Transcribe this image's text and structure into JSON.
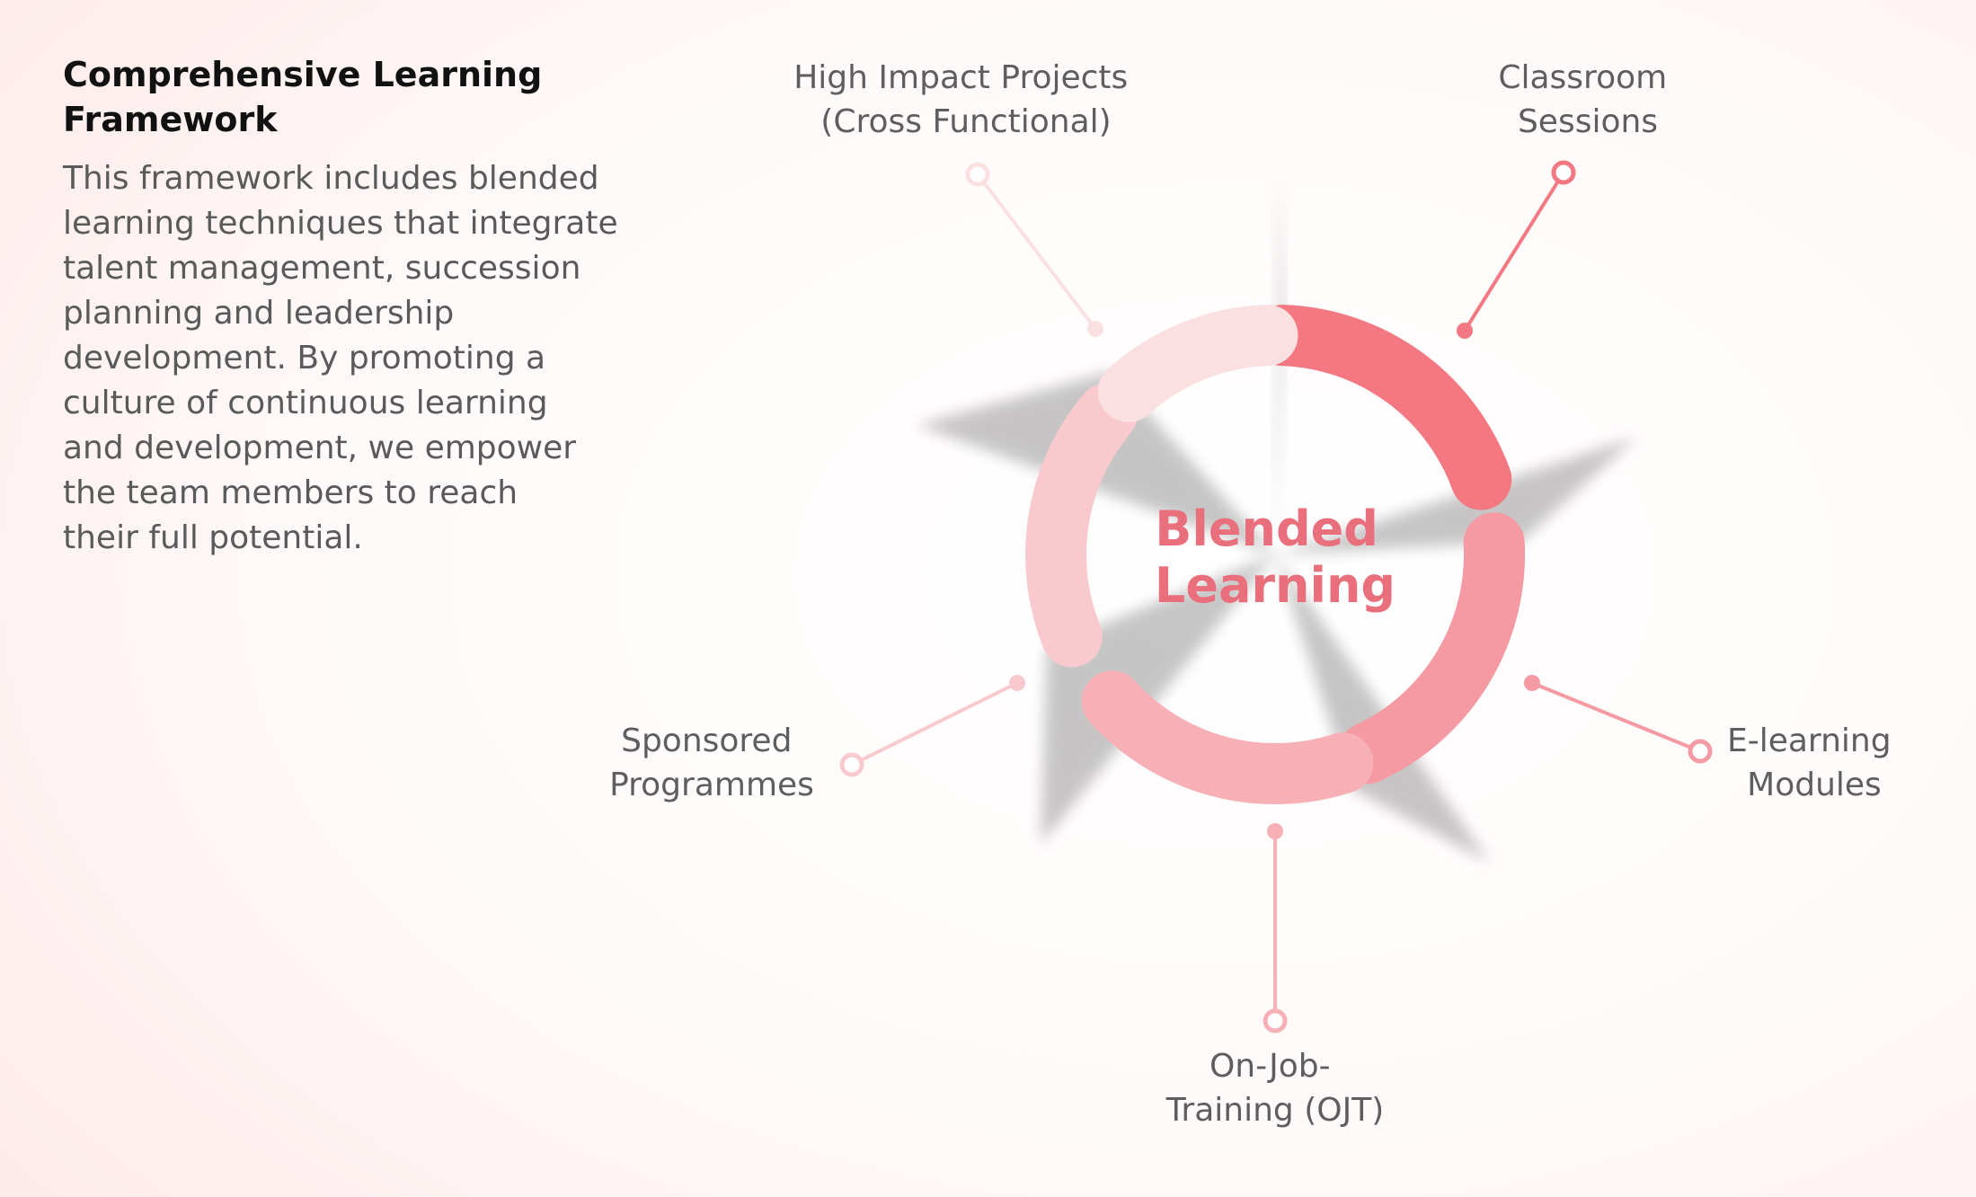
{
  "intro": {
    "title_lines": [
      "Comprehensive Learning",
      "Framework"
    ],
    "body_lines": [
      "This framework includes blended",
      "learning techniques that integrate",
      "talent management, succession",
      "planning and leadership",
      "development. By promoting a",
      "culture of continuous learning",
      "and development, we empower",
      "the team members to reach",
      "their full potential."
    ]
  },
  "center": {
    "lines": [
      "Blended",
      "Learning"
    ]
  },
  "segments": [
    {
      "lines": [
        "Classroom",
        "Sessions"
      ],
      "color": "#f37881"
    },
    {
      "lines": [
        "E-learning",
        "Modules"
      ],
      "color": "#f59aa2"
    },
    {
      "lines": [
        "On-Job-",
        "Training (OJT)"
      ],
      "color": "#f6b0b6"
    },
    {
      "lines": [
        "Sponsored",
        "Programmes"
      ],
      "color": "#f8cace"
    },
    {
      "lines": [
        "High Impact Projects",
        "(Cross Functional)"
      ],
      "color": "#fbe0e2"
    }
  ]
}
